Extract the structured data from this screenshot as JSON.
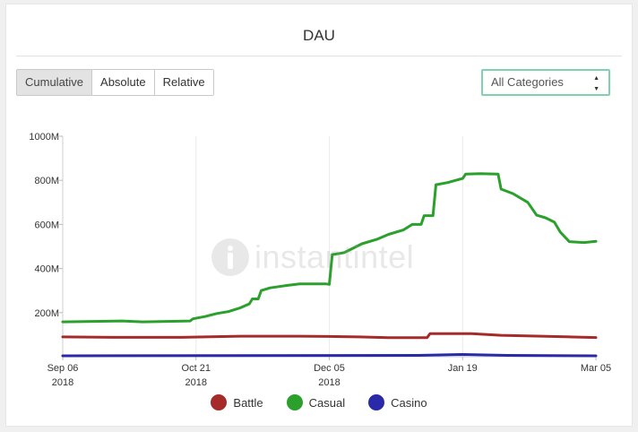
{
  "title": "DAU",
  "tabs": [
    {
      "label": "Cumulative",
      "active": true
    },
    {
      "label": "Absolute",
      "active": false
    },
    {
      "label": "Relative",
      "active": false
    }
  ],
  "category_select": {
    "value": "All Categories"
  },
  "watermark": "instantintel",
  "colors": {
    "battle": "#a52a2a",
    "casual": "#2ca02c",
    "casino": "#2a2aa8",
    "select_border": "#7fd1b0"
  },
  "chart_data": {
    "type": "line",
    "title": "DAU",
    "ylim": [
      0,
      1000
    ],
    "y_ticks": [
      {
        "value": 200,
        "label": "200M"
      },
      {
        "value": 400,
        "label": "400M"
      },
      {
        "value": 600,
        "label": "600M"
      },
      {
        "value": 800,
        "label": "800M"
      },
      {
        "value": 1000,
        "label": "1000M"
      }
    ],
    "x_ticks": [
      {
        "day": 0,
        "label": "Sep 06",
        "sub": "2018"
      },
      {
        "day": 45,
        "label": "Oct 21",
        "sub": "2018"
      },
      {
        "day": 90,
        "label": "Dec 05",
        "sub": "2018"
      },
      {
        "day": 135,
        "label": "Jan 19",
        "sub": ""
      },
      {
        "day": 180,
        "label": "Mar 05",
        "sub": ""
      }
    ],
    "series": [
      {
        "name": "Battle",
        "color": "#a52a2a",
        "points": [
          [
            0,
            90
          ],
          [
            20,
            88
          ],
          [
            40,
            88
          ],
          [
            60,
            93
          ],
          [
            80,
            93
          ],
          [
            90,
            92
          ],
          [
            100,
            90
          ],
          [
            110,
            86
          ],
          [
            123,
            86
          ],
          [
            124,
            105
          ],
          [
            138,
            105
          ],
          [
            148,
            97
          ],
          [
            165,
            92
          ],
          [
            180,
            87
          ]
        ]
      },
      {
        "name": "Casual",
        "color": "#2ca02c",
        "points": [
          [
            0,
            158
          ],
          [
            10,
            160
          ],
          [
            20,
            162
          ],
          [
            27,
            158
          ],
          [
            35,
            160
          ],
          [
            43,
            162
          ],
          [
            44,
            172
          ],
          [
            48,
            182
          ],
          [
            52,
            196
          ],
          [
            56,
            205
          ],
          [
            60,
            222
          ],
          [
            63,
            240
          ],
          [
            64,
            262
          ],
          [
            66,
            262
          ],
          [
            67,
            300
          ],
          [
            70,
            312
          ],
          [
            75,
            322
          ],
          [
            80,
            330
          ],
          [
            89,
            330
          ],
          [
            90,
            328
          ],
          [
            91,
            463
          ],
          [
            95,
            472
          ],
          [
            98,
            492
          ],
          [
            101,
            512
          ],
          [
            106,
            532
          ],
          [
            110,
            555
          ],
          [
            115,
            575
          ],
          [
            118,
            600
          ],
          [
            121,
            600
          ],
          [
            122,
            640
          ],
          [
            125,
            640
          ],
          [
            126,
            780
          ],
          [
            130,
            790
          ],
          [
            134,
            805
          ],
          [
            135,
            808
          ],
          [
            136,
            828
          ],
          [
            141,
            830
          ],
          [
            147,
            828
          ],
          [
            148,
            760
          ],
          [
            152,
            740
          ],
          [
            157,
            700
          ],
          [
            160,
            642
          ],
          [
            163,
            630
          ],
          [
            166,
            610
          ],
          [
            168,
            565
          ],
          [
            171,
            522
          ],
          [
            176,
            518
          ],
          [
            180,
            523
          ]
        ]
      },
      {
        "name": "Casino",
        "color": "#2a2aa8",
        "points": [
          [
            0,
            4
          ],
          [
            120,
            6
          ],
          [
            135,
            10
          ],
          [
            150,
            6
          ],
          [
            180,
            4
          ]
        ]
      }
    ],
    "legend": [
      "Battle",
      "Casual",
      "Casino"
    ],
    "legend_position": "bottom"
  }
}
